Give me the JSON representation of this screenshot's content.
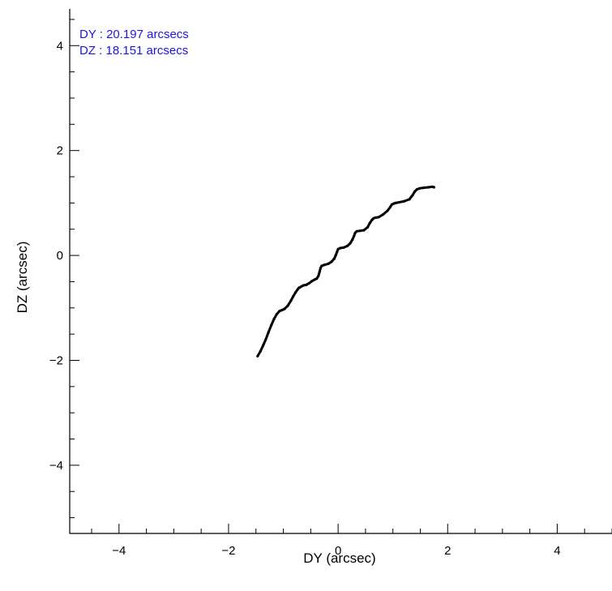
{
  "chart_data": {
    "type": "line",
    "xlabel": "DY (arcsec)",
    "ylabel": "DZ (arcsec)",
    "xlim": [
      -4.9,
      5.0
    ],
    "ylim": [
      -5.3,
      4.7
    ],
    "x_ticks": [
      -4,
      -2,
      0,
      2,
      4
    ],
    "x_tick_labels": [
      "−4",
      "−2",
      "0",
      "2",
      "4"
    ],
    "y_ticks": [
      -4,
      -2,
      0,
      2,
      4
    ],
    "y_tick_labels": [
      "−4",
      "−2",
      "0",
      "2",
      "4"
    ],
    "grid": false,
    "legend": "none",
    "annotations": [
      "DY : 20.197 arcsecs",
      "DZ : 18.151 arcsecs"
    ],
    "annotation_color": "#1f14e6",
    "series": [
      {
        "color": "#000000",
        "x": [
          -1.47,
          -1.42,
          -1.37,
          -1.32,
          -1.27,
          -1.22,
          -1.17,
          -1.12,
          -1.07,
          -1.02,
          -0.98,
          -0.92,
          -0.86,
          -0.82,
          -0.78,
          -0.74,
          -0.72,
          -0.7,
          -0.67,
          -0.63,
          -0.58,
          -0.53,
          -0.48,
          -0.43,
          -0.39,
          -0.36,
          -0.34,
          -0.32,
          -0.3,
          -0.25,
          -0.18,
          -0.12,
          -0.07,
          -0.04,
          -0.02,
          0.0,
          0.04,
          0.1,
          0.17,
          0.22,
          0.26,
          0.29,
          0.31,
          0.34,
          0.4,
          0.47,
          0.54,
          0.58,
          0.62,
          0.65,
          0.68,
          0.74,
          0.82,
          0.9,
          0.95,
          0.98,
          1.02,
          1.05,
          1.1,
          1.2,
          1.3,
          1.36,
          1.4,
          1.44,
          1.49,
          1.56,
          1.65,
          1.72,
          1.75
        ],
        "y": [
          -1.92,
          -1.83,
          -1.72,
          -1.6,
          -1.46,
          -1.33,
          -1.21,
          -1.12,
          -1.06,
          -1.04,
          -1.02,
          -0.96,
          -0.86,
          -0.78,
          -0.71,
          -0.65,
          -0.62,
          -0.61,
          -0.59,
          -0.57,
          -0.56,
          -0.53,
          -0.49,
          -0.46,
          -0.44,
          -0.39,
          -0.32,
          -0.24,
          -0.2,
          -0.18,
          -0.16,
          -0.12,
          -0.06,
          0.01,
          0.07,
          0.12,
          0.14,
          0.15,
          0.18,
          0.23,
          0.3,
          0.37,
          0.43,
          0.46,
          0.47,
          0.48,
          0.54,
          0.62,
          0.68,
          0.71,
          0.72,
          0.73,
          0.78,
          0.85,
          0.92,
          0.97,
          0.99,
          1.0,
          1.01,
          1.03,
          1.07,
          1.15,
          1.22,
          1.26,
          1.28,
          1.29,
          1.3,
          1.31,
          1.3
        ]
      }
    ]
  }
}
